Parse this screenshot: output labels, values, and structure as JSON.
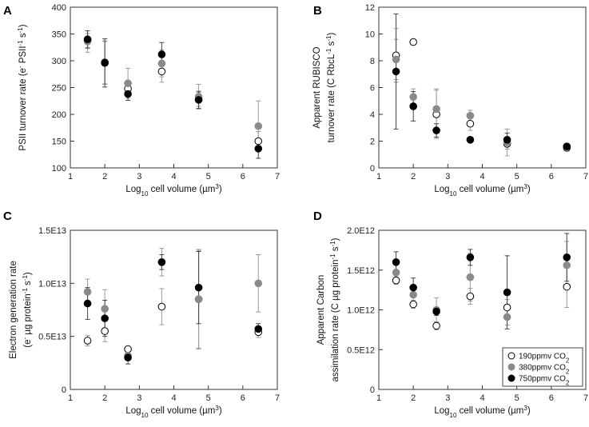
{
  "figure": {
    "description_panels": [
      "A",
      "B",
      "C",
      "D"
    ]
  },
  "series_colors": {
    "190ppmv": "#ffffff",
    "380ppmv": "#8a8a8a",
    "750ppmv": "#000000",
    "error_bar": "#9a9a9a"
  },
  "chart_data": [
    {
      "panel": "A",
      "type": "scatter",
      "xlabel": "Log10 cell volume (µm3)",
      "ylabel": "PSII turnover rate (e- PSII-1 s-1)",
      "xlim": [
        1,
        7
      ],
      "ylim": [
        100,
        400
      ],
      "xticks": [
        1,
        2,
        3,
        4,
        5,
        6,
        7
      ],
      "yticks": [
        100,
        150,
        200,
        250,
        300,
        350,
        400
      ],
      "ytick_labels": [
        "100",
        "150",
        "200",
        "250",
        "300",
        "350",
        "400"
      ],
      "series": [
        {
          "name": "190ppmv CO2",
          "points": [
            {
              "x": 1.5,
              "y": 337,
              "err": 14
            },
            {
              "x": 2.0,
              "y": 297,
              "err": 40
            },
            {
              "x": 2.67,
              "y": 248,
              "err": 10
            },
            {
              "x": 3.65,
              "y": 280,
              "err": 20
            },
            {
              "x": 4.72,
              "y": 228,
              "err": 13
            },
            {
              "x": 6.45,
              "y": 150,
              "err": 18
            }
          ]
        },
        {
          "name": "380ppmv CO2",
          "points": [
            {
              "x": 1.5,
              "y": 336,
              "err": 20
            },
            {
              "x": 2.0,
              "y": 296,
              "err": 40
            },
            {
              "x": 2.67,
              "y": 258,
              "err": 28
            },
            {
              "x": 3.65,
              "y": 295,
              "err": 25
            },
            {
              "x": 4.72,
              "y": 233,
              "err": 23
            },
            {
              "x": 6.45,
              "y": 178,
              "err": 47
            }
          ]
        },
        {
          "name": "750ppmv CO2",
          "points": [
            {
              "x": 1.5,
              "y": 340,
              "err": 16
            },
            {
              "x": 2.0,
              "y": 296,
              "err": 45
            },
            {
              "x": 2.67,
              "y": 238,
              "err": 12
            },
            {
              "x": 3.65,
              "y": 312,
              "err": 22
            },
            {
              "x": 4.72,
              "y": 227,
              "err": 16
            },
            {
              "x": 6.45,
              "y": 136,
              "err": 18
            }
          ]
        }
      ]
    },
    {
      "panel": "B",
      "type": "scatter",
      "xlabel": "Log10 cell volume (µm3)",
      "ylabel_line1": "Apparent RUBISCO",
      "ylabel_line2": "turnover rate (C RbcL-1 s-1)",
      "xlim": [
        1,
        7
      ],
      "ylim": [
        0,
        12
      ],
      "xticks": [
        1,
        2,
        3,
        4,
        5,
        6,
        7
      ],
      "yticks": [
        0,
        2,
        4,
        6,
        8,
        10,
        12
      ],
      "ytick_labels": [
        "0",
        "2",
        "4",
        "6",
        "8",
        "10",
        "12"
      ],
      "series": [
        {
          "name": "190ppmv CO2",
          "points": [
            {
              "x": 1.5,
              "y": 8.4,
              "err": 2.0
            },
            {
              "x": 2.0,
              "y": 9.4,
              "err": 0
            },
            {
              "x": 2.67,
              "y": 4.0,
              "err": 1.8
            },
            {
              "x": 3.65,
              "y": 3.3,
              "err": 0.5
            },
            {
              "x": 4.72,
              "y": 1.8,
              "err": 0.4
            },
            {
              "x": 6.45,
              "y": 1.5,
              "err": 0.2
            }
          ]
        },
        {
          "name": "380ppmv CO2",
          "points": [
            {
              "x": 1.5,
              "y": 8.1,
              "err": 1.5
            },
            {
              "x": 2.0,
              "y": 5.3,
              "err": 0.6
            },
            {
              "x": 2.67,
              "y": 4.4,
              "err": 1.5
            },
            {
              "x": 3.65,
              "y": 3.9,
              "err": 0.4
            },
            {
              "x": 4.72,
              "y": 1.9,
              "err": 1.0
            },
            {
              "x": 6.45,
              "y": 1.6,
              "err": 0.2
            }
          ]
        },
        {
          "name": "750ppmv CO2",
          "points": [
            {
              "x": 1.5,
              "y": 7.2,
              "err": 4.3
            },
            {
              "x": 2.0,
              "y": 4.6,
              "err": 1.1
            },
            {
              "x": 2.67,
              "y": 2.8,
              "err": 0.5
            },
            {
              "x": 3.65,
              "y": 2.1,
              "err": 0.1
            },
            {
              "x": 4.72,
              "y": 2.1,
              "err": 0.5
            },
            {
              "x": 6.45,
              "y": 1.6,
              "err": 0.2
            }
          ]
        }
      ]
    },
    {
      "panel": "C",
      "type": "scatter",
      "xlabel": "Log10 cell volume (µm3)",
      "ylabel_line1": "Electron generation rate",
      "ylabel_line2": "(e- µg protein-1 s-1)",
      "xlim": [
        1,
        7
      ],
      "ylim": [
        0,
        1.5
      ],
      "xticks": [
        1,
        2,
        3,
        4,
        5,
        6,
        7
      ],
      "yticks": [
        0,
        0.5,
        1.0,
        1.5
      ],
      "ytick_labels": [
        "0",
        "0.5E13",
        "1.0E13",
        "1.5E13"
      ],
      "y_unit_note": "values ×1E13",
      "series": [
        {
          "name": "190ppmv CO2",
          "points": [
            {
              "x": 1.5,
              "y": 0.46,
              "err": 0.05
            },
            {
              "x": 2.0,
              "y": 0.55,
              "err": 0.1
            },
            {
              "x": 2.67,
              "y": 0.38,
              "err": 0.02
            },
            {
              "x": 3.65,
              "y": 0.78,
              "err": 0.17
            },
            {
              "x": 4.72,
              "y": 0.85,
              "err": 0.46
            },
            {
              "x": 6.45,
              "y": 0.54,
              "err": 0.05
            }
          ]
        },
        {
          "name": "380ppmv CO2",
          "points": [
            {
              "x": 1.5,
              "y": 0.92,
              "err": 0.12
            },
            {
              "x": 2.0,
              "y": 0.76,
              "err": 0.18
            },
            {
              "x": 2.67,
              "y": 0.32,
              "err": 0.04
            },
            {
              "x": 3.65,
              "y": 1.2,
              "err": 0.13
            },
            {
              "x": 4.72,
              "y": 0.85,
              "err": 0.47
            },
            {
              "x": 6.45,
              "y": 1.0,
              "err": 0.27
            }
          ]
        },
        {
          "name": "750ppmv CO2",
          "points": [
            {
              "x": 1.5,
              "y": 0.81,
              "err": 0.15
            },
            {
              "x": 2.0,
              "y": 0.67,
              "err": 0.17
            },
            {
              "x": 2.67,
              "y": 0.3,
              "err": 0.06
            },
            {
              "x": 3.65,
              "y": 1.2,
              "err": 0.07
            },
            {
              "x": 4.72,
              "y": 0.96,
              "err": 0.34
            },
            {
              "x": 6.45,
              "y": 0.57,
              "err": 0.05
            }
          ]
        }
      ]
    },
    {
      "panel": "D",
      "type": "scatter",
      "xlabel": "Log10 cell volume (µm3)",
      "ylabel_line1": "Apparent Carbon",
      "ylabel_line2": "assimilation rate (C µg protein-1 s-1)",
      "xlim": [
        1,
        7
      ],
      "ylim": [
        0,
        2.0
      ],
      "xticks": [
        1,
        2,
        3,
        4,
        5,
        6,
        7
      ],
      "yticks": [
        0,
        0.5,
        1.0,
        1.5,
        2.0
      ],
      "ytick_labels": [
        "0",
        "0.5E12",
        "1.0E12",
        "1.5E12",
        "2.0E12"
      ],
      "y_unit_note": "values ×1E12",
      "legend": {
        "position": "bottom-right",
        "entries": [
          "190ppmv CO2",
          "380ppmv CO2",
          "750ppmv CO2"
        ]
      },
      "series": [
        {
          "name": "190ppmv CO2",
          "points": [
            {
              "x": 1.5,
              "y": 1.37,
              "err": 0.05
            },
            {
              "x": 2.0,
              "y": 1.07,
              "err": 0.05
            },
            {
              "x": 2.67,
              "y": 0.8,
              "err": 0.05
            },
            {
              "x": 3.65,
              "y": 1.17,
              "err": 0.1
            },
            {
              "x": 4.72,
              "y": 1.03,
              "err": 0.1
            },
            {
              "x": 6.45,
              "y": 1.29,
              "err": 0.26
            }
          ]
        },
        {
          "name": "380ppmv CO2",
          "points": [
            {
              "x": 1.5,
              "y": 1.47,
              "err": 0.1
            },
            {
              "x": 2.0,
              "y": 1.19,
              "err": 0.1
            },
            {
              "x": 2.67,
              "y": 1.0,
              "err": 0.15
            },
            {
              "x": 3.65,
              "y": 1.41,
              "err": 0.3
            },
            {
              "x": 4.72,
              "y": 0.91,
              "err": 0.1
            },
            {
              "x": 6.45,
              "y": 1.56,
              "err": 0.3
            }
          ]
        },
        {
          "name": "750ppmv CO2",
          "points": [
            {
              "x": 1.5,
              "y": 1.6,
              "err": 0.13
            },
            {
              "x": 2.0,
              "y": 1.28,
              "err": 0.12
            },
            {
              "x": 2.67,
              "y": 0.98,
              "err": 0.05
            },
            {
              "x": 3.65,
              "y": 1.66,
              "err": 0.1
            },
            {
              "x": 4.72,
              "y": 1.22,
              "err": 0.46
            },
            {
              "x": 6.45,
              "y": 1.66,
              "err": 0.3
            }
          ]
        }
      ]
    }
  ]
}
